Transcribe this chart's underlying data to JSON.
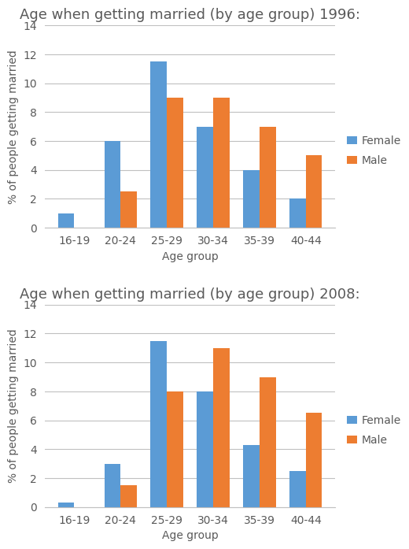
{
  "categories": [
    "16-19",
    "20-24",
    "25-29",
    "30-34",
    "35-39",
    "40-44"
  ],
  "chart1": {
    "title": "Age when getting married (by age group) 1996:",
    "female": [
      1.0,
      6.0,
      11.5,
      7.0,
      4.0,
      2.0
    ],
    "male": [
      0.0,
      2.5,
      9.0,
      9.0,
      7.0,
      5.0
    ]
  },
  "chart2": {
    "title": "Age when getting married (by age group) 2008:",
    "female": [
      0.3,
      3.0,
      11.5,
      8.0,
      4.3,
      2.5
    ],
    "male": [
      0.0,
      1.5,
      8.0,
      11.0,
      9.0,
      6.5
    ]
  },
  "female_color": "#5B9BD5",
  "male_color": "#ED7D31",
  "xlabel": "Age group",
  "ylabel": "% of people getting married",
  "ylim": [
    0,
    14
  ],
  "yticks": [
    0,
    2,
    4,
    6,
    8,
    10,
    12,
    14
  ],
  "background_color": "#FFFFFF",
  "grid_color": "#C0C0C0",
  "title_fontsize": 13,
  "axis_label_fontsize": 10,
  "tick_fontsize": 10,
  "legend_labels": [
    "Female",
    "Male"
  ],
  "bar_width": 0.35,
  "text_color": "#595959"
}
